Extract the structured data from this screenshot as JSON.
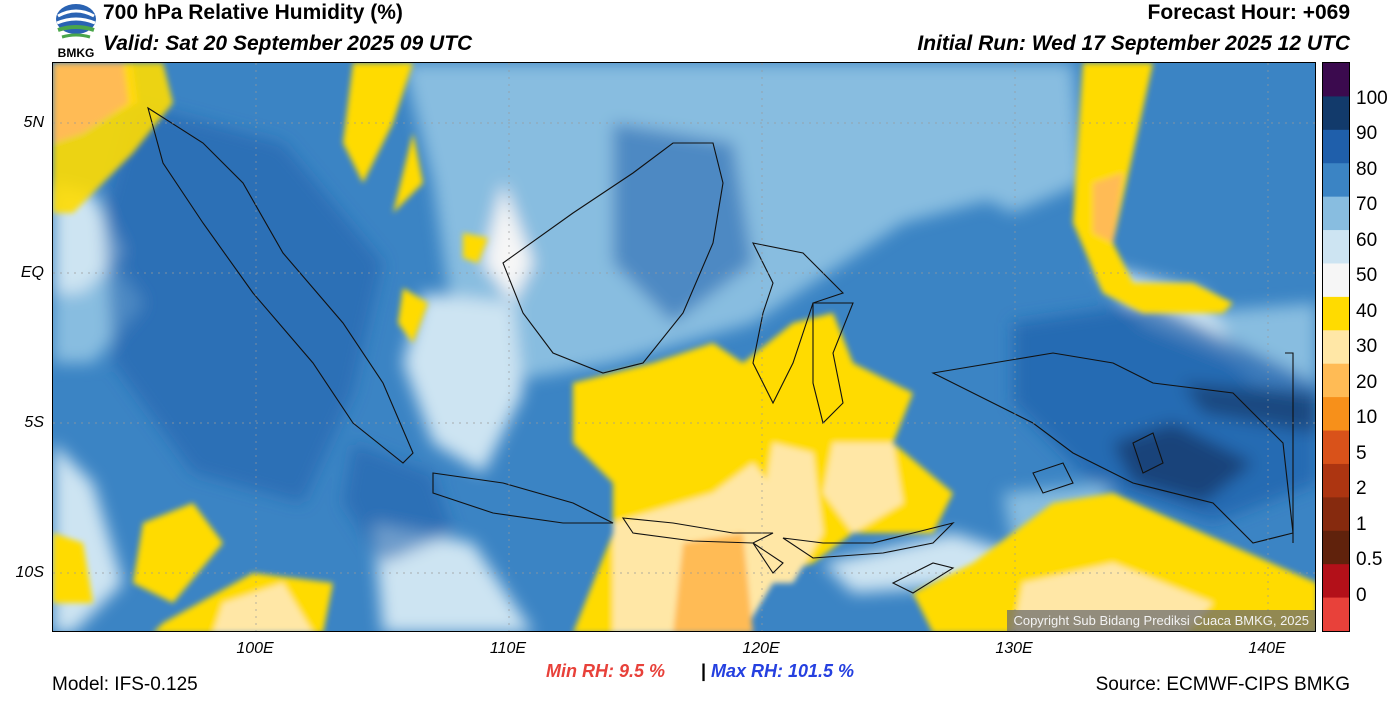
{
  "header": {
    "logo_text": "BMKG",
    "title": "700 hPa Relative Humidity (%)",
    "valid": "Valid: Sat 20 September 2025 09 UTC",
    "forecast_hour": "Forecast Hour: +069",
    "initial_run": "Initial Run: Wed 17 September 2025 12 UTC"
  },
  "map": {
    "lat_labels": [
      "5N",
      "EQ",
      "5S",
      "10S"
    ],
    "lon_labels": [
      "100E",
      "110E",
      "120E",
      "130E",
      "140E"
    ],
    "copyright": "Copyright Sub Bidang Prediksi Cuaca BMKG, 2025"
  },
  "colorbar": {
    "labels": [
      "100",
      "90",
      "80",
      "70",
      "60",
      "50",
      "40",
      "30",
      "20",
      "10",
      "5",
      "2",
      "1",
      "0.5",
      "0"
    ],
    "colors": [
      "#3b0a4e",
      "#123a6b",
      "#1f5fab",
      "#3b84c4",
      "#88bde0",
      "#cde4f2",
      "#f6f6f6",
      "#ffdb00",
      "#ffe7a6",
      "#ffbb55",
      "#f7901a",
      "#d9521a",
      "#ad3511",
      "#862a0e",
      "#60220c",
      "#b31019",
      "#e8413a"
    ]
  },
  "footer": {
    "model": "Model: IFS-0.125",
    "min_rh": "Min RH:   9.5 %",
    "separator": "|",
    "max_rh": "Max RH: 101.5 %",
    "source": "Source: ECMWF-CIPS BMKG"
  }
}
